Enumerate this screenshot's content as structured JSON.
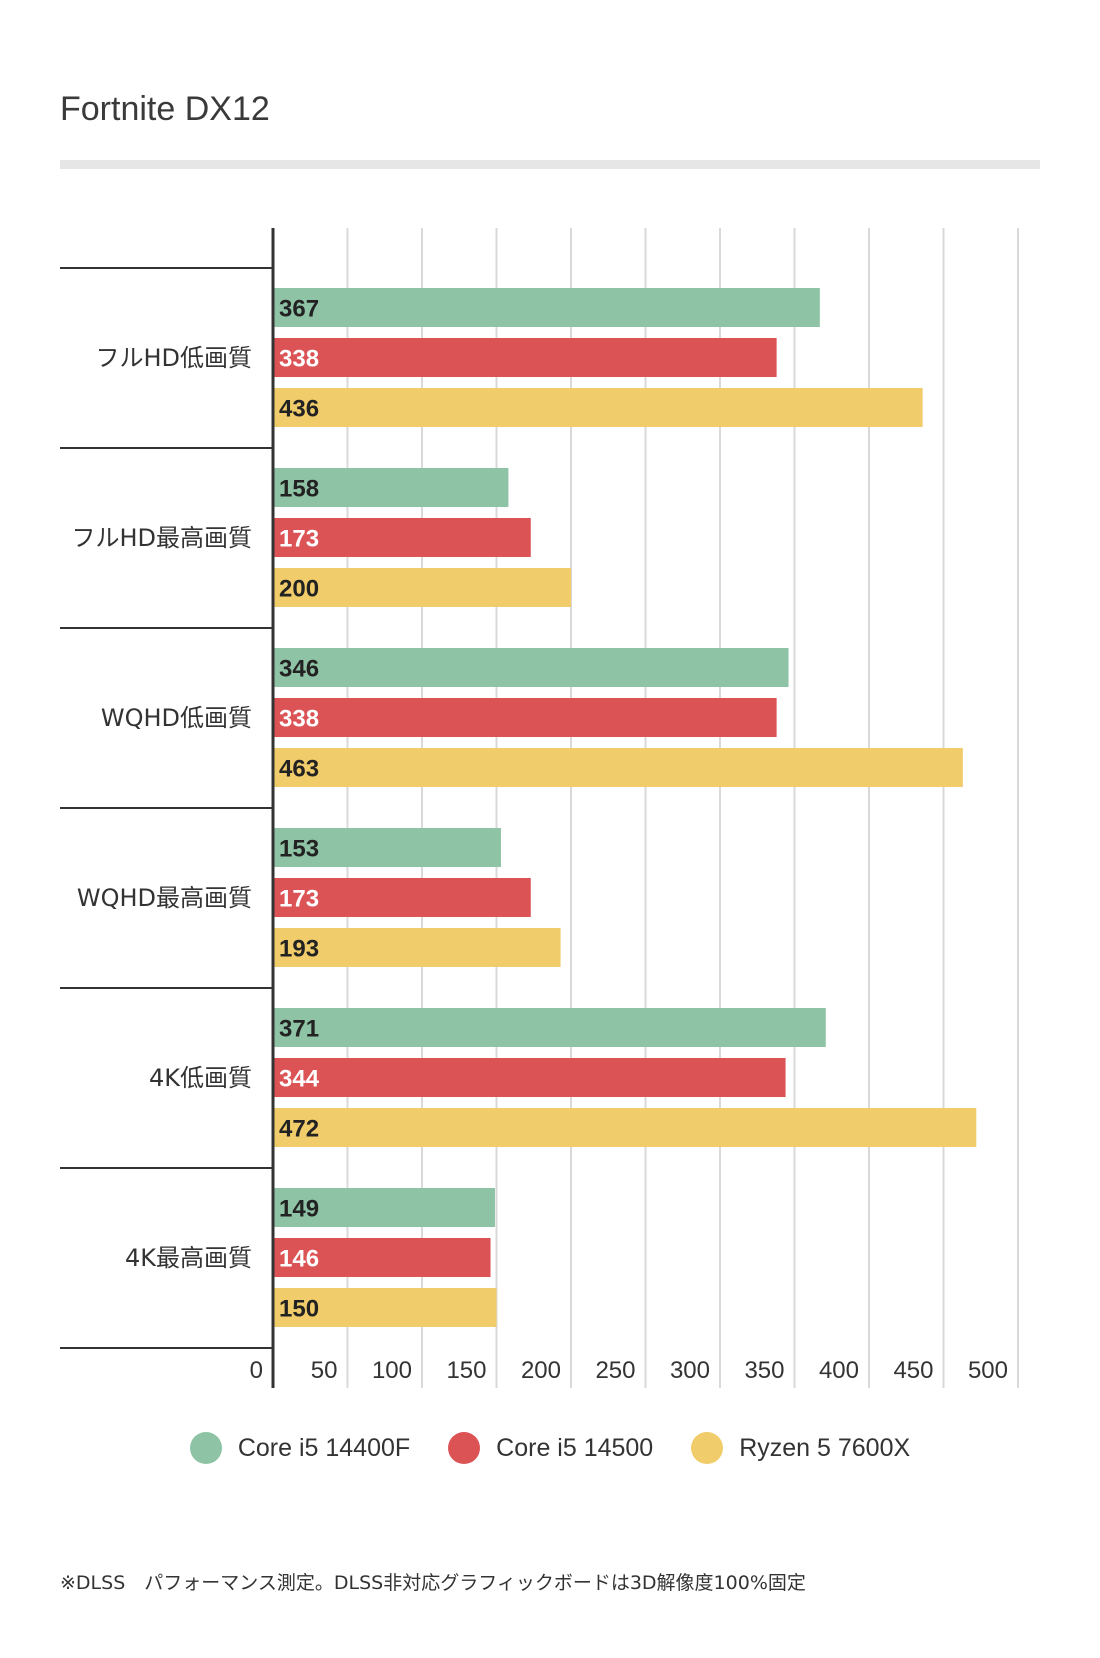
{
  "chart_data": {
    "type": "bar",
    "orientation": "horizontal",
    "title": "Fortnite  DX12",
    "categories": [
      "フルHD低画質",
      "フルHD最高画質",
      "WQHD低画質",
      "WQHD最高画質",
      "4K低画質",
      "4K最高画質"
    ],
    "series": [
      {
        "name": "Core i5 14400F",
        "color": "#8fc3a6",
        "label_color": "#222222",
        "values": [
          367,
          158,
          346,
          153,
          371,
          149
        ]
      },
      {
        "name": "Core i5 14500",
        "color": "#dc5356",
        "label_color": "#ffffff",
        "values": [
          338,
          173,
          338,
          173,
          344,
          146
        ]
      },
      {
        "name": "Ryzen 5 7600X",
        "color": "#f0cc6a",
        "label_color": "#222222",
        "values": [
          436,
          200,
          463,
          193,
          472,
          150
        ]
      }
    ],
    "xlim": [
      0,
      500
    ],
    "xticks": [
      "0",
      "50",
      "100",
      "150",
      "200",
      "250",
      "300",
      "350",
      "400",
      "450",
      "500"
    ],
    "grid": true,
    "legend_position": "bottom"
  },
  "footnote": "※DLSS　パフォーマンス測定。DLSS非対応グラフィックボードは3D解像度100%固定"
}
